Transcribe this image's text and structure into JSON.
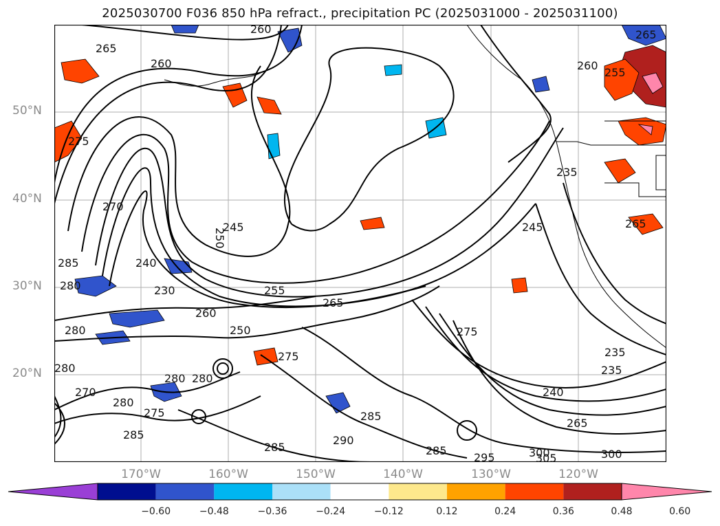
{
  "title": "2025030700 F036 850 hPa refract., precipitation PC (2025031000 - 2025031100)",
  "lat_labels": [
    "50°N",
    "40°N",
    "30°N",
    "20°N"
  ],
  "lon_labels": [
    "170°W",
    "160°W",
    "150°W",
    "140°W",
    "130°W",
    "120°W"
  ],
  "contour_labels": [
    "265",
    "260",
    "245",
    "240",
    "230",
    "270",
    "275",
    "285",
    "280",
    "255",
    "260",
    "250",
    "265",
    "280",
    "280",
    "275",
    "280",
    "285",
    "290",
    "285",
    "295",
    "300",
    "305",
    "285",
    "300",
    "265",
    "240",
    "235",
    "235",
    "275",
    "265",
    "245",
    "255",
    "235",
    "260",
    "265",
    "285",
    "280",
    "270",
    "275",
    "250",
    "280",
    "260"
  ],
  "colorbar": {
    "ticks": [
      "−0.60",
      "−0.48",
      "−0.36",
      "−0.24",
      "−0.12",
      "0.12",
      "0.24",
      "0.36",
      "0.48",
      "0.60"
    ],
    "colors": [
      "#9a3fd6",
      "#000e8f",
      "#3054cc",
      "#00b6f0",
      "#abe0f8",
      "#ffffff",
      "#fde88c",
      "#ffa200",
      "#ff4400",
      "#b0201e",
      "#ff86ab"
    ]
  }
}
